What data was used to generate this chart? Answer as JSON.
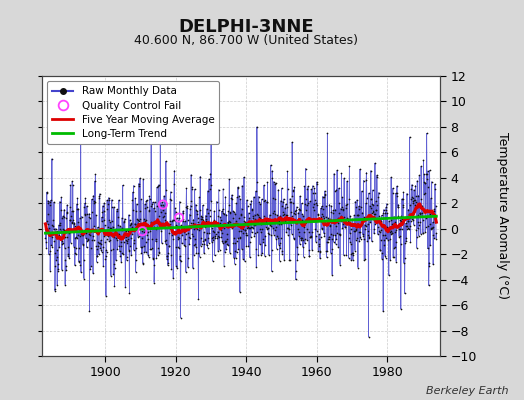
{
  "title": "DELPHI-3NNE",
  "subtitle": "40.600 N, 86.700 W (United States)",
  "ylabel": "Temperature Anomaly (°C)",
  "credit": "Berkeley Earth",
  "start_year": 1883,
  "end_year": 1993,
  "ylim": [
    -10,
    12
  ],
  "yticks": [
    -10,
    -8,
    -6,
    -4,
    -2,
    0,
    2,
    4,
    6,
    8,
    10,
    12
  ],
  "xticks": [
    1900,
    1920,
    1940,
    1960,
    1980
  ],
  "bg_color": "#d8d8d8",
  "plot_bg_color": "#ffffff",
  "grid_color": "#aaaaaa",
  "raw_line_color": "#4444cc",
  "raw_dot_color": "#111111",
  "moving_avg_color": "#dd0000",
  "trend_color": "#00bb00",
  "qc_fail_color": "#ff44ff",
  "seed": 12345,
  "n_months": 1332,
  "moving_avg_window": 60,
  "trend_slope": 0.012,
  "trend_intercept": -0.35
}
